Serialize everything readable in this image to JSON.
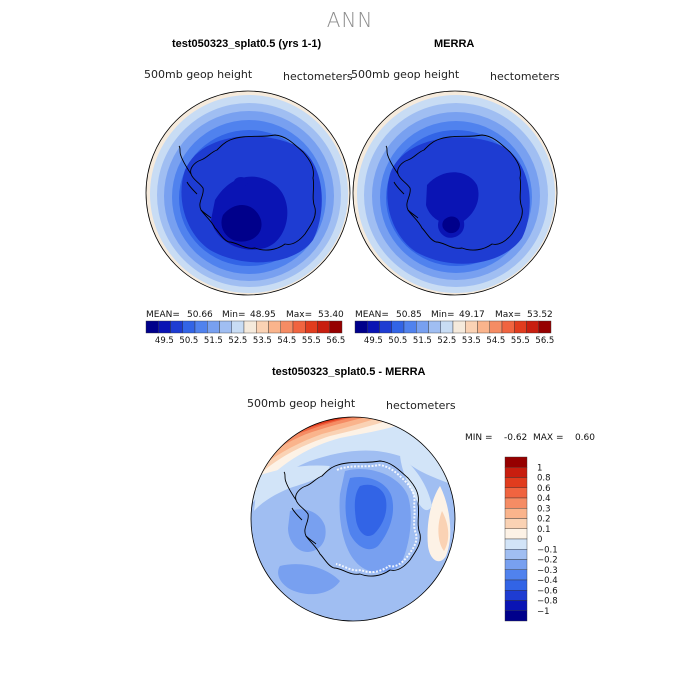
{
  "suptitle": "ANN",
  "panels": [
    {
      "title": "test050323_splat0.5 (yrs 1-1)",
      "variable": "500mb geop height",
      "units": "hectometers",
      "stats": {
        "mean_label": "MEAN=",
        "mean": "50.66",
        "min_label": "Min=",
        "min": "48.95",
        "max_label": "Max=",
        "max": "53.40"
      }
    },
    {
      "title": "MERRA",
      "variable": "500mb geop height",
      "units": "hectometers",
      "stats": {
        "mean_label": "MEAN=",
        "mean": "50.85",
        "min_label": "Min=",
        "min": "49.17",
        "max_label": "Max=",
        "max": "53.52"
      }
    },
    {
      "title": "test050323_splat0.5 - MERRA",
      "variable": "500mb geop height",
      "units": "hectometers",
      "stats_text": "MIN =    -0.62  MAX =    0.60"
    }
  ],
  "colors": {
    "abs_levels": [
      "#00008b",
      "#0a14b4",
      "#1e3cd2",
      "#3264e6",
      "#5082ee",
      "#78a0f0",
      "#a0bef2",
      "#c8dcf4",
      "#f5eadc",
      "#fad2b4",
      "#fab48c",
      "#f58c64",
      "#f06440",
      "#e13c1e",
      "#c81e0f",
      "#960000"
    ],
    "diff_levels": [
      "#00008b",
      "#0a14b4",
      "#1e3cd2",
      "#3264e6",
      "#5082ee",
      "#78a0f0",
      "#a0bef2",
      "#d2e4f8",
      "#fdf2e6",
      "#fad2b4",
      "#fab48c",
      "#f58c64",
      "#f06440",
      "#e13c1e",
      "#c81e0f",
      "#960000"
    ]
  },
  "chart_data": [
    {
      "type": "heatmap",
      "title": "test050323_splat0.5 (yrs 1-1)",
      "variable": "500mb geop height",
      "units": "hectometers",
      "projection": "south polar stereographic",
      "mean": 50.66,
      "min": 48.95,
      "max": 53.4,
      "colorbar_ticks": [
        "49.5",
        "50.5",
        "51.5",
        "52.5",
        "53.5",
        "54.5",
        "55.5",
        "56.5"
      ]
    },
    {
      "type": "heatmap",
      "title": "MERRA",
      "variable": "500mb geop height",
      "units": "hectometers",
      "projection": "south polar stereographic",
      "mean": 50.85,
      "min": 49.17,
      "max": 53.52,
      "colorbar_ticks": [
        "49.5",
        "50.5",
        "51.5",
        "52.5",
        "53.5",
        "54.5",
        "55.5",
        "56.5"
      ]
    },
    {
      "type": "heatmap",
      "title": "test050323_splat0.5 - MERRA",
      "variable": "500mb geop height",
      "units": "hectometers",
      "projection": "south polar stereographic",
      "min": -0.62,
      "max": 0.6,
      "colorbar_ticks": [
        "1",
        "0.8",
        "0.6",
        "0.4",
        "0.3",
        "0.2",
        "0.1",
        "0",
        "−0.1",
        "−0.2",
        "−0.3",
        "−0.4",
        "−0.6",
        "−0.8",
        "−1"
      ]
    }
  ]
}
